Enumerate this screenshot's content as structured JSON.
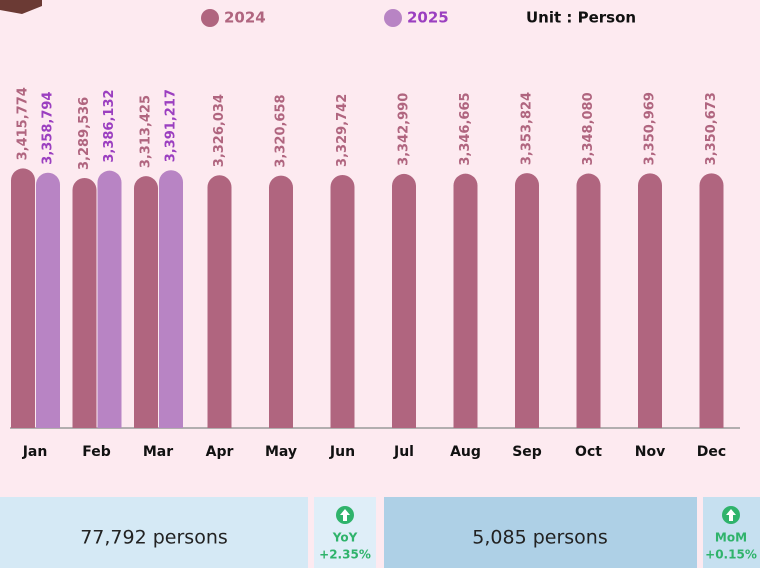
{
  "chart_data": {
    "type": "bar",
    "unit": "Unit : Person",
    "categories": [
      "Jan",
      "Feb",
      "Mar",
      "Apr",
      "May",
      "Jun",
      "Jul",
      "Aug",
      "Sep",
      "Oct",
      "Nov",
      "Dec"
    ],
    "series": [
      {
        "name": "2024",
        "color": "#b0657f",
        "label_color": "#b0657f",
        "values": [
          3415774,
          3289536,
          3313425,
          3326034,
          3320658,
          3329742,
          3342990,
          3346665,
          3353824,
          3348080,
          3350969,
          3350673
        ],
        "value_labels": [
          "3,415,774",
          "3,289,536",
          "3,313,425",
          "3,326,034",
          "3,320,658",
          "3,329,742",
          "3,342,990",
          "3,346,665",
          "3,353,824",
          "3,348,080",
          "3,350,969",
          "3,350,673"
        ]
      },
      {
        "name": "2025",
        "color": "#b884c4",
        "label_color": "#9b3fc0",
        "values": [
          3358794,
          3386132,
          3391217,
          null,
          null,
          null,
          null,
          null,
          null,
          null,
          null,
          null
        ],
        "value_labels": [
          "3,358,794",
          "3,386,132",
          "3,391,217",
          null,
          null,
          null,
          null,
          null,
          null,
          null,
          null,
          null
        ]
      }
    ],
    "ylim": [
      0,
      3500000
    ]
  },
  "summary": [
    {
      "text": "77,792 persons",
      "badge": "YoY",
      "change": "+2.35%"
    },
    {
      "text": "5,085 persons",
      "badge": "MoM",
      "change": "+0.15%"
    }
  ]
}
